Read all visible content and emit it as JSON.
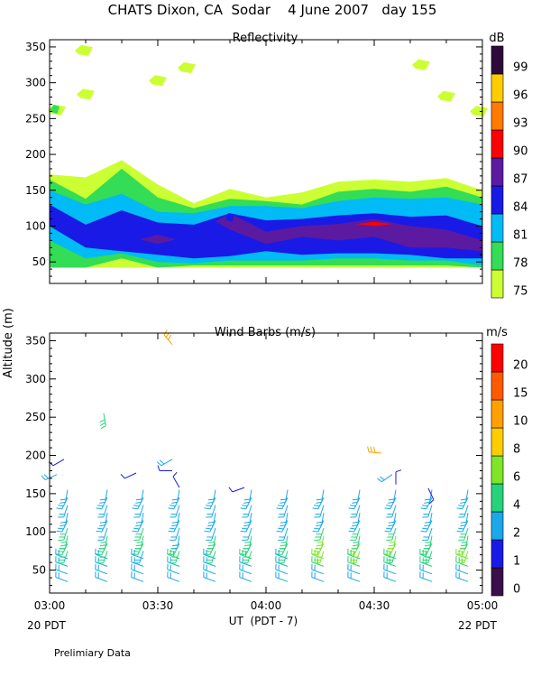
{
  "figure": {
    "title": "CHATS Dixon, CA  Sodar    4 June 2007   day 155",
    "ylabel": "Altitude (m)",
    "xlabel": "UT  (PDT - 7)",
    "start_label": "20 PDT",
    "end_label": "22 PDT",
    "footnote": "Prelimiary Data"
  },
  "chart_data": [
    {
      "type": "heatmap",
      "title": "Reflectivity",
      "colorbar_label": "dB",
      "xlim": [
        0,
        120
      ],
      "ylim": [
        20,
        360
      ],
      "x_ticks": [
        0,
        30,
        60,
        90,
        120
      ],
      "x_tick_labels": [
        "03:00",
        "03:30",
        "04:00",
        "04:30",
        "05:00"
      ],
      "y_ticks": [
        50,
        100,
        150,
        200,
        250,
        300,
        350
      ],
      "y_tick_labels": [
        "50",
        "100",
        "150",
        "200",
        "250",
        "300",
        "350"
      ],
      "levels": [
        75,
        78,
        81,
        84,
        87,
        90,
        93,
        96,
        99
      ],
      "level_labels": [
        "75",
        "78",
        "81",
        "84",
        "87",
        "90",
        "93",
        "96",
        "99"
      ],
      "level_colors": [
        "#ccff33",
        "#33dd55",
        "#00bbf5",
        "#1a1ae6",
        "#5c1aa0",
        "#ff0000",
        "#ff7a00",
        "#ffcc00",
        "#2e0a3c"
      ],
      "x": [
        0,
        10,
        20,
        30,
        40,
        50,
        60,
        70,
        80,
        90,
        100,
        110,
        120
      ],
      "bands": [
        {
          "level": 75,
          "lower": [
            42,
            42,
            42,
            42,
            42,
            42,
            42,
            42,
            42,
            42,
            42,
            42,
            42
          ],
          "upper": [
            172,
            168,
            192,
            158,
            132,
            152,
            140,
            147,
            162,
            165,
            162,
            167,
            150
          ]
        },
        {
          "level": 78,
          "lower": [
            42,
            42,
            55,
            42,
            45,
            45,
            45,
            45,
            45,
            45,
            45,
            45,
            42
          ],
          "upper": [
            165,
            138,
            180,
            140,
            125,
            138,
            135,
            130,
            148,
            152,
            148,
            155,
            140
          ]
        },
        {
          "level": 81,
          "lower": [
            80,
            55,
            62,
            50,
            48,
            52,
            52,
            52,
            55,
            55,
            52,
            52,
            45
          ],
          "upper": [
            150,
            130,
            145,
            120,
            118,
            128,
            128,
            125,
            135,
            140,
            138,
            140,
            130
          ]
        },
        {
          "level": 84,
          "lower": [
            100,
            70,
            65,
            60,
            55,
            58,
            65,
            60,
            62,
            62,
            60,
            55,
            55
          ],
          "upper": [
            130,
            102,
            122,
            105,
            102,
            118,
            108,
            110,
            115,
            118,
            113,
            115,
            100
          ]
        },
        {
          "level": 87,
          "lower": [
            0,
            0,
            0,
            75,
            0,
            95,
            75,
            85,
            80,
            85,
            70,
            70,
            65
          ],
          "upper": [
            0,
            0,
            0,
            88,
            0,
            118,
            92,
            100,
            103,
            110,
            100,
            95,
            80
          ]
        },
        {
          "level": 90,
          "lower": [
            0,
            0,
            0,
            0,
            0,
            0,
            0,
            0,
            0,
            100,
            0,
            0,
            0
          ],
          "upper": [
            0,
            0,
            0,
            0,
            0,
            0,
            0,
            0,
            0,
            106,
            0,
            0,
            0
          ]
        }
      ],
      "patches": [
        {
          "level": 75,
          "x": 9.5,
          "y": 345
        },
        {
          "level": 75,
          "x": 38,
          "y": 321
        },
        {
          "level": 75,
          "x": 30,
          "y": 303
        },
        {
          "level": 75,
          "x": 10,
          "y": 284
        },
        {
          "level": 75,
          "x": 103,
          "y": 325
        },
        {
          "level": 75,
          "x": 110,
          "y": 281
        },
        {
          "level": 75,
          "x": 119,
          "y": 260
        },
        {
          "level": 75,
          "x": 2,
          "y": 262
        },
        {
          "level": 78,
          "x": 1.5,
          "y": 263
        },
        {
          "level": 84,
          "x": 50,
          "y": 112
        }
      ]
    },
    {
      "type": "wind_barbs",
      "title": "Wind Barbs (m/s)",
      "colorbar_label": "m/s",
      "xlim": [
        0,
        120
      ],
      "ylim": [
        20,
        360
      ],
      "x_ticks": [
        0,
        30,
        60,
        90,
        120
      ],
      "x_tick_labels": [
        "03:00",
        "03:30",
        "04:00",
        "04:30",
        "05:00"
      ],
      "y_ticks": [
        50,
        100,
        150,
        200,
        250,
        300,
        350
      ],
      "y_tick_labels": [
        "50",
        "100",
        "150",
        "200",
        "250",
        "300",
        "350"
      ],
      "speed_levels": [
        0,
        1,
        2,
        4,
        6,
        8,
        10,
        15,
        20
      ],
      "speed_labels": [
        "0",
        "1",
        "2",
        "4",
        "6",
        "8",
        "10",
        "15",
        "20"
      ],
      "speed_colors": [
        "#3a0f4a",
        "#1a1ae6",
        "#1aa8ea",
        "#27d37a",
        "#7ee626",
        "#ffcc00",
        "#ffa000",
        "#ff5a00",
        "#ff0000"
      ],
      "profile_times": [
        5,
        16,
        26,
        36,
        46,
        56,
        66,
        76,
        86,
        96,
        106,
        116
      ],
      "profile_heights": [
        35,
        45,
        55,
        65,
        75,
        85,
        95,
        105,
        115,
        125,
        135,
        145,
        155
      ],
      "profile_speed_ms": [
        [
          2.5,
          3,
          3,
          3.5,
          4,
          4,
          4,
          4,
          3.5,
          3.5,
          3,
          2.5,
          2
        ],
        [
          2.5,
          3,
          3.5,
          3.5,
          4,
          4,
          4,
          3.5,
          3.5,
          3,
          3,
          2.5,
          2
        ],
        [
          2.5,
          3,
          3,
          3.5,
          3.5,
          4,
          4,
          4,
          3.5,
          3.5,
          3,
          2.5,
          2
        ],
        [
          2.5,
          3,
          3.5,
          4,
          4,
          4,
          3.5,
          3.5,
          3.5,
          3,
          3,
          2.5,
          2
        ],
        [
          2.5,
          3,
          3.5,
          3.5,
          4,
          4,
          4,
          3.5,
          3.5,
          3,
          3,
          2.5,
          2
        ],
        [
          3,
          3,
          3.5,
          4,
          4,
          4,
          4,
          3.5,
          3.5,
          3,
          3,
          2.5,
          2
        ],
        [
          2.5,
          3,
          3.5,
          3.5,
          4,
          4,
          4,
          3.5,
          3.5,
          3,
          3,
          2.5,
          2
        ],
        [
          3,
          3.5,
          4,
          6,
          6,
          6,
          6,
          4,
          3.5,
          3,
          3,
          2.5,
          2
        ],
        [
          3,
          3.5,
          4,
          4,
          6,
          6,
          4,
          4,
          3.5,
          3,
          3,
          2.5,
          2
        ],
        [
          3,
          3.5,
          4,
          4,
          4,
          6,
          6,
          4,
          3.5,
          3,
          3,
          2.5,
          2
        ],
        [
          3,
          3.5,
          4,
          4,
          4,
          4,
          4,
          3.5,
          3.5,
          3,
          3,
          2.5,
          2
        ],
        [
          3,
          3.5,
          4,
          6,
          6,
          6,
          4,
          4,
          3.5,
          3,
          3,
          2.5,
          2
        ]
      ],
      "extra_barbs": [
        {
          "t": 4,
          "h": 195,
          "speed": 1,
          "dir": 240
        },
        {
          "t": 2,
          "h": 175,
          "speed": 2,
          "dir": 245
        },
        {
          "t": 24,
          "h": 177,
          "speed": 1,
          "dir": 245
        },
        {
          "t": 34,
          "h": 195,
          "speed": 2,
          "dir": 240
        },
        {
          "t": 34,
          "h": 180,
          "speed": 1,
          "dir": 270
        },
        {
          "t": 36,
          "h": 158,
          "speed": 1,
          "dir": 330
        },
        {
          "t": 54,
          "h": 158,
          "speed": 1,
          "dir": 250
        },
        {
          "t": 15,
          "h": 255,
          "speed": 4,
          "dir": 170
        },
        {
          "t": 34,
          "h": 345,
          "speed": 10,
          "dir": 320
        },
        {
          "t": 92,
          "h": 203,
          "speed": 10,
          "dir": 275
        },
        {
          "t": 95,
          "h": 175,
          "speed": 2,
          "dir": 235
        },
        {
          "t": 96,
          "h": 162,
          "speed": 1,
          "dir": 0
        },
        {
          "t": 105,
          "h": 157,
          "speed": 1,
          "dir": 155
        }
      ]
    }
  ]
}
